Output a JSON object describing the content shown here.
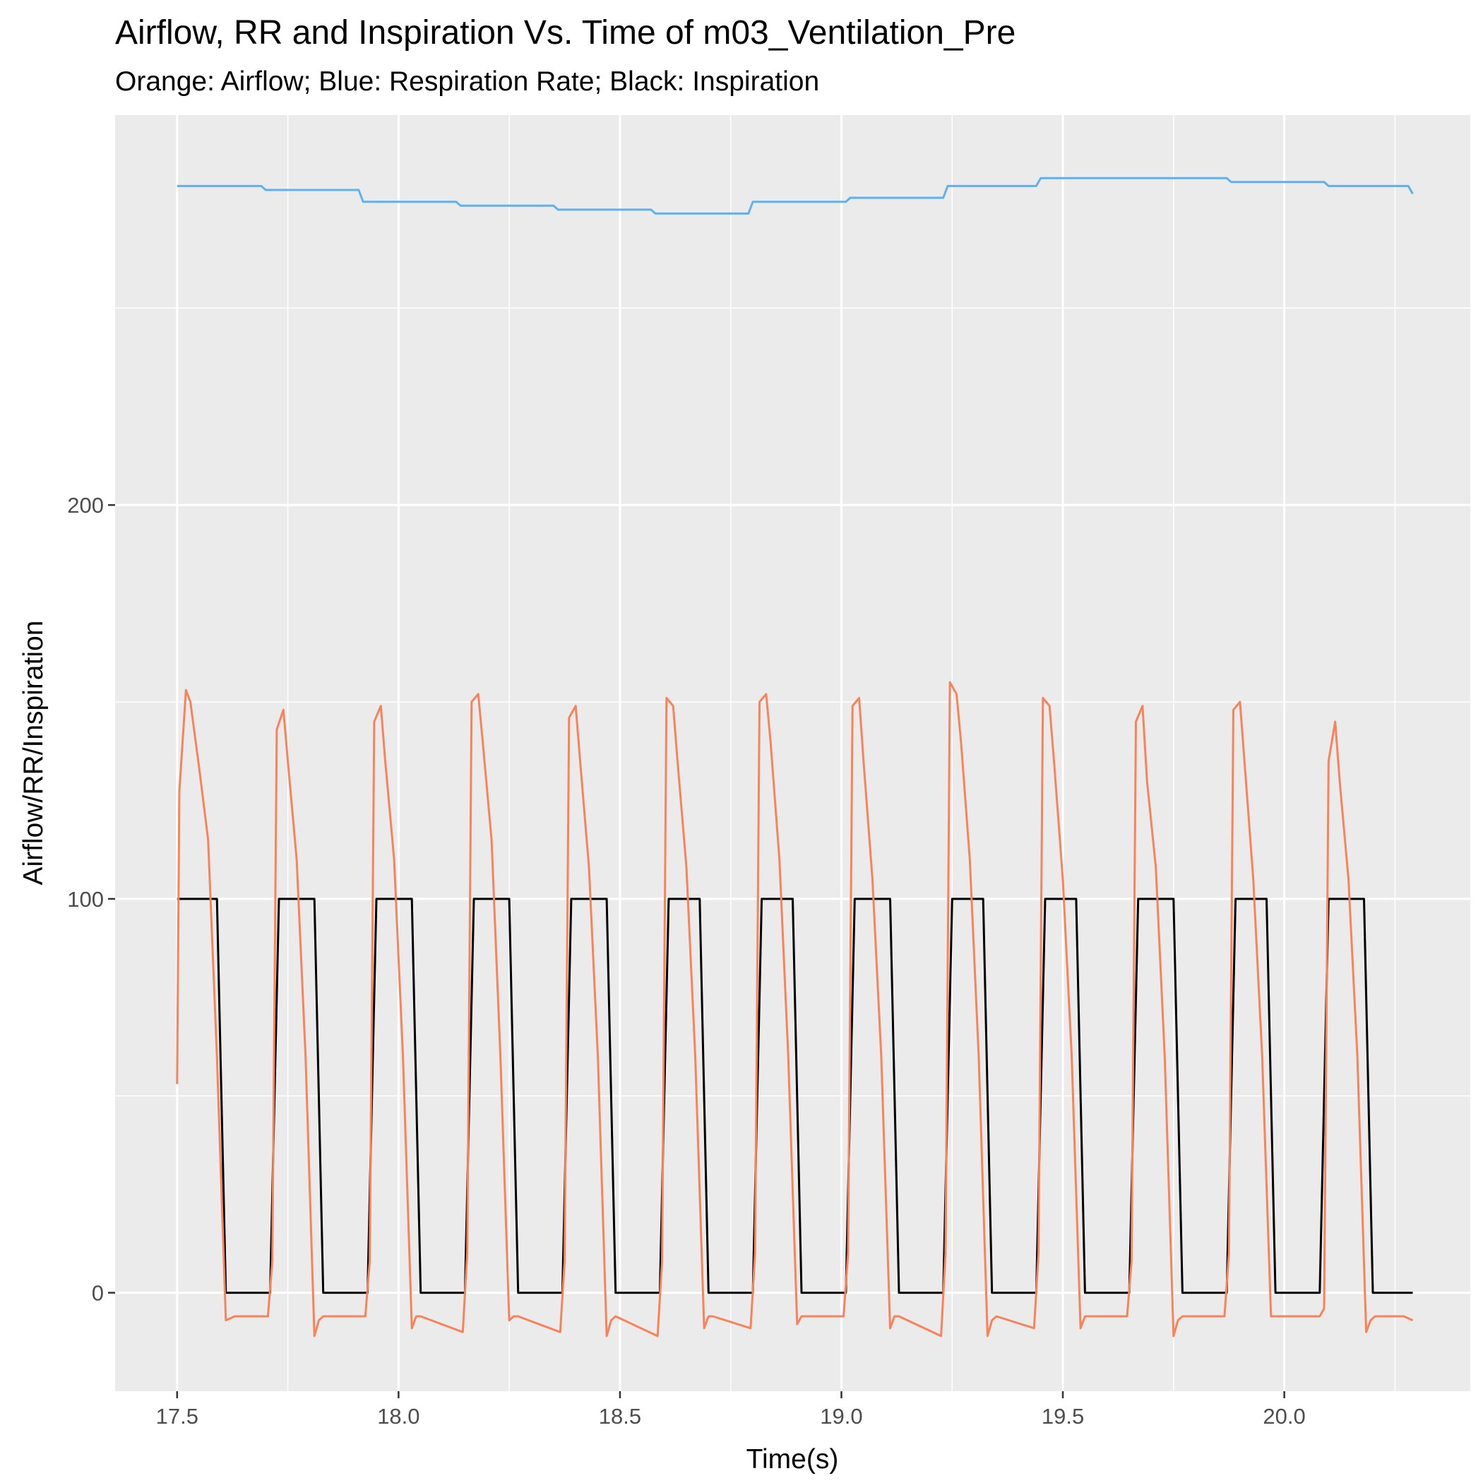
{
  "chart_data": {
    "type": "line",
    "title": "Airflow, RR and Inspiration Vs. Time  of  m03_Ventilation_Pre",
    "subtitle": "Orange: Airflow; Blue: Respiration Rate; Black: Inspiration",
    "xlabel": "Time(s)",
    "ylabel": "Airflow/RR/Inspiration",
    "xlim": [
      17.36,
      20.42
    ],
    "ylim": [
      -25,
      299
    ],
    "x_ticks": [
      17.5,
      18.0,
      18.5,
      19.0,
      19.5,
      20.0
    ],
    "x_tick_labels": [
      "17.5",
      "18.0",
      "18.5",
      "19.0",
      "19.5",
      "20.0"
    ],
    "y_ticks": [
      0,
      100,
      200
    ],
    "y_tick_labels": [
      "0",
      "100",
      "200"
    ],
    "grid": true,
    "legend": "none",
    "colors": {
      "panel": "#ebebeb",
      "grid": "#ffffff",
      "airflow": "#f8825a",
      "rr": "#5db1f2",
      "inspiration": "#000000",
      "tick_text": "#4d4d4d"
    },
    "series": [
      {
        "key": "rr",
        "x": [
          17.5,
          17.69,
          17.7,
          17.91,
          17.92,
          18.13,
          18.14,
          18.35,
          18.36,
          18.57,
          18.58,
          18.79,
          18.8,
          19.01,
          19.02,
          19.23,
          19.24,
          19.44,
          19.45,
          19.87,
          19.88,
          20.09,
          20.1,
          20.28,
          20.29
        ],
        "y": [
          281,
          281,
          280,
          280,
          277,
          277,
          276,
          276,
          275,
          275,
          274,
          274,
          277,
          277,
          278,
          278,
          281,
          281,
          283,
          283,
          282,
          282,
          281,
          281,
          279
        ]
      },
      {
        "key": "inspiration",
        "x": [
          17.5,
          17.59,
          17.61,
          17.71,
          17.73,
          17.81,
          17.83,
          17.93,
          17.95,
          18.03,
          18.05,
          18.15,
          18.17,
          18.25,
          18.27,
          18.37,
          18.39,
          18.47,
          18.49,
          18.59,
          18.61,
          18.68,
          18.7,
          18.8,
          18.82,
          18.89,
          18.91,
          19.01,
          19.03,
          19.11,
          19.13,
          19.23,
          19.25,
          19.32,
          19.34,
          19.44,
          19.46,
          19.53,
          19.55,
          19.65,
          19.67,
          19.75,
          19.77,
          19.87,
          19.89,
          19.96,
          19.98,
          20.08,
          20.1,
          20.18,
          20.2,
          20.29
        ],
        "y": [
          100,
          100,
          0,
          0,
          100,
          100,
          0,
          0,
          100,
          100,
          0,
          0,
          100,
          100,
          0,
          0,
          100,
          100,
          0,
          0,
          100,
          100,
          0,
          0,
          100,
          100,
          0,
          0,
          100,
          100,
          0,
          0,
          100,
          100,
          0,
          0,
          100,
          100,
          0,
          0,
          100,
          100,
          0,
          0,
          100,
          100,
          0,
          0,
          100,
          100,
          0,
          0
        ]
      },
      {
        "key": "airflow",
        "x": [
          17.5,
          17.505,
          17.52,
          17.53,
          17.55,
          17.57,
          17.59,
          17.61,
          17.63,
          17.705,
          17.715,
          17.725,
          17.74,
          17.75,
          17.77,
          17.79,
          17.81,
          17.82,
          17.83,
          17.925,
          17.935,
          17.945,
          17.96,
          17.97,
          17.99,
          18.01,
          18.03,
          18.04,
          18.05,
          18.145,
          18.155,
          18.165,
          18.18,
          18.19,
          18.21,
          18.23,
          18.25,
          18.26,
          18.27,
          18.365,
          18.375,
          18.385,
          18.4,
          18.41,
          18.43,
          18.45,
          18.47,
          18.48,
          18.49,
          18.585,
          18.595,
          18.605,
          18.62,
          18.63,
          18.65,
          18.67,
          18.69,
          18.7,
          18.71,
          18.795,
          18.805,
          18.815,
          18.83,
          18.84,
          18.86,
          18.88,
          18.9,
          18.91,
          18.92,
          19.005,
          19.015,
          19.025,
          19.04,
          19.05,
          19.07,
          19.09,
          19.11,
          19.12,
          19.13,
          19.225,
          19.235,
          19.245,
          19.26,
          19.27,
          19.29,
          19.31,
          19.33,
          19.34,
          19.35,
          19.435,
          19.445,
          19.455,
          19.47,
          19.48,
          19.5,
          19.52,
          19.54,
          19.55,
          19.56,
          19.645,
          19.655,
          19.665,
          19.68,
          19.69,
          19.71,
          19.73,
          19.75,
          19.76,
          19.77,
          19.865,
          19.875,
          19.885,
          19.9,
          19.91,
          19.93,
          19.95,
          19.97,
          19.98,
          19.99,
          20.08,
          20.09,
          20.1,
          20.115,
          20.125,
          20.145,
          20.165,
          20.185,
          20.195,
          20.205,
          20.27,
          20.29
        ],
        "y": [
          53,
          127,
          153,
          150,
          133,
          115,
          60,
          -7,
          -6,
          -6,
          8,
          143,
          148,
          135,
          110,
          60,
          -11,
          -7,
          -6,
          -6,
          8,
          145,
          149,
          135,
          110,
          60,
          -9,
          -6,
          -6,
          -10,
          10,
          150,
          152,
          140,
          115,
          60,
          -7,
          -6,
          -6,
          -10,
          8,
          146,
          149,
          135,
          108,
          60,
          -11,
          -7,
          -6,
          -11,
          8,
          151,
          149,
          135,
          108,
          60,
          -9,
          -6,
          -6,
          -9,
          10,
          150,
          152,
          140,
          110,
          60,
          -8,
          -6,
          -6,
          -6,
          10,
          149,
          151,
          135,
          105,
          60,
          -9,
          -6,
          -6,
          -11,
          10,
          155,
          152,
          140,
          110,
          60,
          -11,
          -7,
          -6,
          -9,
          10,
          151,
          149,
          135,
          105,
          60,
          -9,
          -6,
          -6,
          -6,
          8,
          145,
          149,
          130,
          108,
          60,
          -11,
          -7,
          -6,
          -6,
          10,
          148,
          150,
          135,
          105,
          60,
          -6,
          -6,
          -6,
          -6,
          -4,
          135,
          145,
          130,
          105,
          60,
          -10,
          -7,
          -6,
          -6,
          -7
        ]
      }
    ]
  }
}
